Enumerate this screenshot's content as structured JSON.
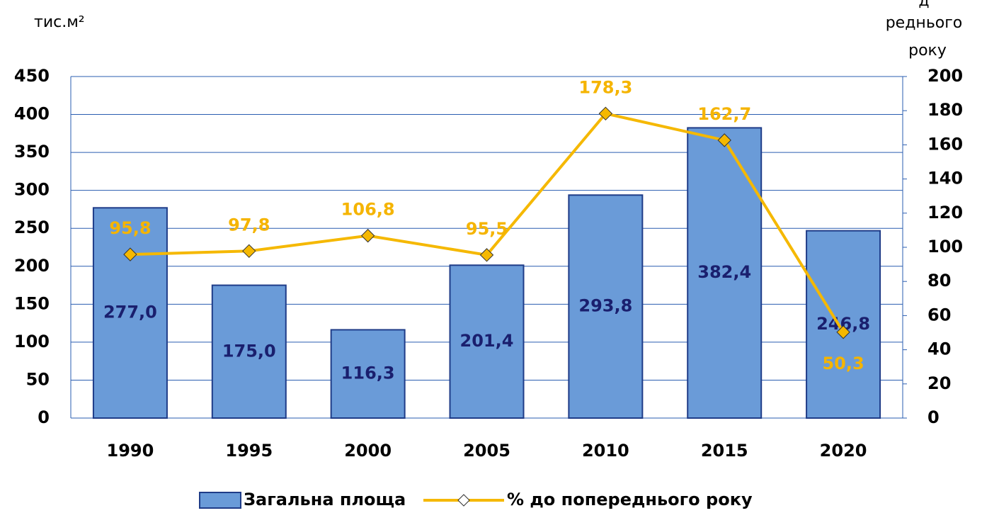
{
  "chart_data": {
    "type": "bar+line",
    "y_label": "тис.м²",
    "y2_label": [
      "д",
      "реднього",
      "року"
    ],
    "categories": [
      "1990",
      "1995",
      "2000",
      "2005",
      "2010",
      "2015",
      "2020"
    ],
    "series": [
      {
        "name": "Загальна площа",
        "type": "bar",
        "color": "#6a9bd8",
        "edge": "#1f3c88",
        "label_color": "#1a1f6e",
        "values": [
          277.0,
          175.0,
          116.3,
          201.4,
          293.8,
          382.4,
          246.8
        ],
        "value_labels": [
          "277,0",
          "175,0",
          "116,3",
          "201,4",
          "293,8",
          "382,4",
          "246,8"
        ]
      },
      {
        "name": "% до попереднього року",
        "type": "line",
        "axis": "y2",
        "color": "#f5b800",
        "label_color": "#f5b400",
        "values": [
          95.8,
          97.8,
          106.8,
          95.5,
          178.3,
          162.7,
          50.3
        ],
        "value_labels": [
          "95,8",
          "97,8",
          "106,8",
          "95,5",
          "178,3",
          "162,7",
          "50,3"
        ]
      }
    ],
    "ylim": [
      0,
      450
    ],
    "yticks": [
      0,
      50,
      100,
      150,
      200,
      250,
      300,
      350,
      400,
      450
    ],
    "y2lim": [
      0,
      200
    ],
    "y2ticks": [
      0,
      20,
      40,
      60,
      80,
      100,
      120,
      140,
      160,
      180,
      200
    ],
    "grid": true,
    "legend": "bottom"
  }
}
